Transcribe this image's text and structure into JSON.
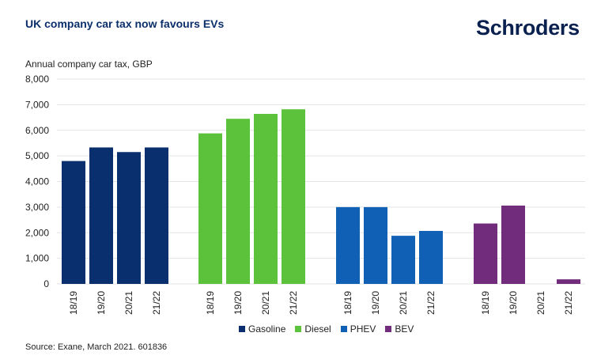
{
  "header": {
    "title": "UK company car tax now favours EVs",
    "logo": "Schroders"
  },
  "footer": {
    "source": "Source: Exane, March 2021. 601836"
  },
  "chart_data": {
    "type": "bar",
    "title": "UK company car tax now favours EVs",
    "ylabel": "Annual company car tax, GBP",
    "xlabel": "",
    "ylim": [
      0,
      8000
    ],
    "yticks": [
      0,
      1000,
      2000,
      3000,
      4000,
      5000,
      6000,
      7000,
      8000
    ],
    "ytick_labels": [
      "0",
      "1,000",
      "2,000",
      "3,000",
      "4,000",
      "5,000",
      "6,000",
      "7,000",
      "8,000"
    ],
    "grid": true,
    "legend_position": "bottom-center",
    "categories": [
      "18/19",
      "19/20",
      "20/21",
      "21/22"
    ],
    "series": [
      {
        "name": "Gasoline",
        "color": "#0a2f6e",
        "values": [
          4800,
          5330,
          5150,
          5330
        ]
      },
      {
        "name": "Diesel",
        "color": "#5cc13b",
        "values": [
          5880,
          6450,
          6640,
          6820
        ]
      },
      {
        "name": "PHEV",
        "color": "#1061b5",
        "values": [
          3000,
          3000,
          1880,
          2070
        ]
      },
      {
        "name": "BEV",
        "color": "#722c7c",
        "values": [
          2360,
          3060,
          0,
          180
        ]
      }
    ]
  }
}
